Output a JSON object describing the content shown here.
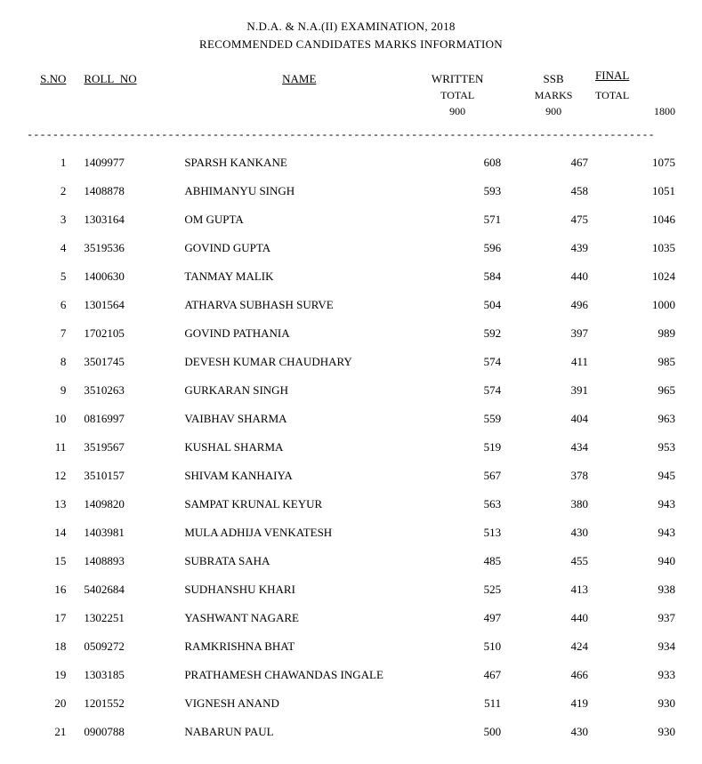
{
  "title": {
    "line1": "N.D.A. & N.A.(II) EXAMINATION, 2018",
    "line2": "RECOMMENDED CANDIDATES MARKS INFORMATION"
  },
  "headers": {
    "sno": "S.NO",
    "roll": "ROLL_NO",
    "name": "NAME",
    "written": "WRITTEN",
    "written_sub1": "TOTAL",
    "written_sub2": "900",
    "ssb": "SSB",
    "ssb_sub1": "MARKS",
    "ssb_sub2": "900",
    "final": "FINAL",
    "final_sub1": "TOTAL",
    "final_sub2": "1800"
  },
  "divider": "--------------------------------------------------------------------------------------------------",
  "rows": [
    {
      "sno": "1",
      "roll": "1409977",
      "name": "SPARSH KANKANE",
      "wt": "608",
      "ssb": "467",
      "ft": "1075"
    },
    {
      "sno": "2",
      "roll": "1408878",
      "name": "ABHIMANYU SINGH",
      "wt": "593",
      "ssb": "458",
      "ft": "1051"
    },
    {
      "sno": "3",
      "roll": "1303164",
      "name": "OM GUPTA",
      "wt": "571",
      "ssb": "475",
      "ft": "1046"
    },
    {
      "sno": "4",
      "roll": "3519536",
      "name": "GOVIND GUPTA",
      "wt": "596",
      "ssb": "439",
      "ft": "1035"
    },
    {
      "sno": "5",
      "roll": "1400630",
      "name": "TANMAY MALIK",
      "wt": "584",
      "ssb": "440",
      "ft": "1024"
    },
    {
      "sno": "6",
      "roll": "1301564",
      "name": "ATHARVA SUBHASH SURVE",
      "wt": "504",
      "ssb": "496",
      "ft": "1000"
    },
    {
      "sno": "7",
      "roll": "1702105",
      "name": "GOVIND PATHANIA",
      "wt": "592",
      "ssb": "397",
      "ft": "989"
    },
    {
      "sno": "8",
      "roll": "3501745",
      "name": "DEVESH KUMAR CHAUDHARY",
      "wt": "574",
      "ssb": "411",
      "ft": "985"
    },
    {
      "sno": "9",
      "roll": "3510263",
      "name": "GURKARAN SINGH",
      "wt": "574",
      "ssb": "391",
      "ft": "965"
    },
    {
      "sno": "10",
      "roll": "0816997",
      "name": "VAIBHAV SHARMA",
      "wt": "559",
      "ssb": "404",
      "ft": "963"
    },
    {
      "sno": "11",
      "roll": "3519567",
      "name": "KUSHAL SHARMA",
      "wt": "519",
      "ssb": "434",
      "ft": "953"
    },
    {
      "sno": "12",
      "roll": "3510157",
      "name": "SHIVAM KANHAIYA",
      "wt": "567",
      "ssb": "378",
      "ft": "945"
    },
    {
      "sno": "13",
      "roll": "1409820",
      "name": "SAMPAT KRUNAL KEYUR",
      "wt": "563",
      "ssb": "380",
      "ft": "943"
    },
    {
      "sno": "14",
      "roll": "1403981",
      "name": "MULA ADHIJA VENKATESH",
      "wt": "513",
      "ssb": "430",
      "ft": "943"
    },
    {
      "sno": "15",
      "roll": "1408893",
      "name": "SUBRATA SAHA",
      "wt": "485",
      "ssb": "455",
      "ft": "940"
    },
    {
      "sno": "16",
      "roll": "5402684",
      "name": "SUDHANSHU KHARI",
      "wt": "525",
      "ssb": "413",
      "ft": "938"
    },
    {
      "sno": "17",
      "roll": "1302251",
      "name": "YASHWANT NAGARE",
      "wt": "497",
      "ssb": "440",
      "ft": "937"
    },
    {
      "sno": "18",
      "roll": "0509272",
      "name": "RAMKRISHNA BHAT",
      "wt": "510",
      "ssb": "424",
      "ft": "934"
    },
    {
      "sno": "19",
      "roll": "1303185",
      "name": "PRATHAMESH CHAWANDAS INGALE",
      "wt": "467",
      "ssb": "466",
      "ft": "933"
    },
    {
      "sno": "20",
      "roll": "1201552",
      "name": "VIGNESH ANAND",
      "wt": "511",
      "ssb": "419",
      "ft": "930"
    },
    {
      "sno": "21",
      "roll": "0900788",
      "name": "NABARUN PAUL",
      "wt": "500",
      "ssb": "430",
      "ft": "930"
    }
  ]
}
